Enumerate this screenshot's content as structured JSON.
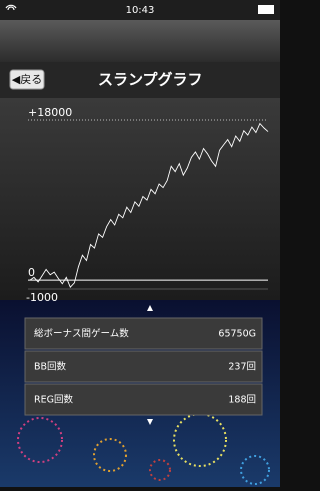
{
  "status": {
    "time": "10:43"
  },
  "header": {
    "back": "◀戻る",
    "title": "スランプグラフ"
  },
  "chart_data": {
    "type": "line",
    "color": "#ffffff",
    "values": [
      0,
      300,
      -200,
      500,
      1200,
      600,
      900,
      200,
      -400,
      300,
      -800,
      -300,
      1500,
      2800,
      2200,
      4000,
      3600,
      5200,
      4800,
      6000,
      6800,
      6200,
      7400,
      7000,
      8200,
      7600,
      8800,
      8300,
      9400,
      9000,
      10200,
      9700,
      10800,
      10400,
      11200,
      12800,
      12200,
      13100,
      11800,
      12600,
      13800,
      14400,
      13600,
      14800,
      14200,
      13400,
      12800,
      14600,
      15200,
      15800,
      15000,
      16200,
      15600,
      16800,
      16300,
      17200,
      16600,
      17600,
      17100,
      16700
    ],
    "ylim": [
      -1000,
      18000
    ],
    "yticks": [
      {
        "value": 18000,
        "label": "+18000"
      },
      0,
      -1000
    ]
  },
  "stats": {
    "rows": [
      [
        "総ボーナス間ゲーム数",
        "65750G"
      ],
      [
        "BB回数",
        "237回"
      ],
      [
        "REG回数",
        "188回"
      ]
    ]
  }
}
